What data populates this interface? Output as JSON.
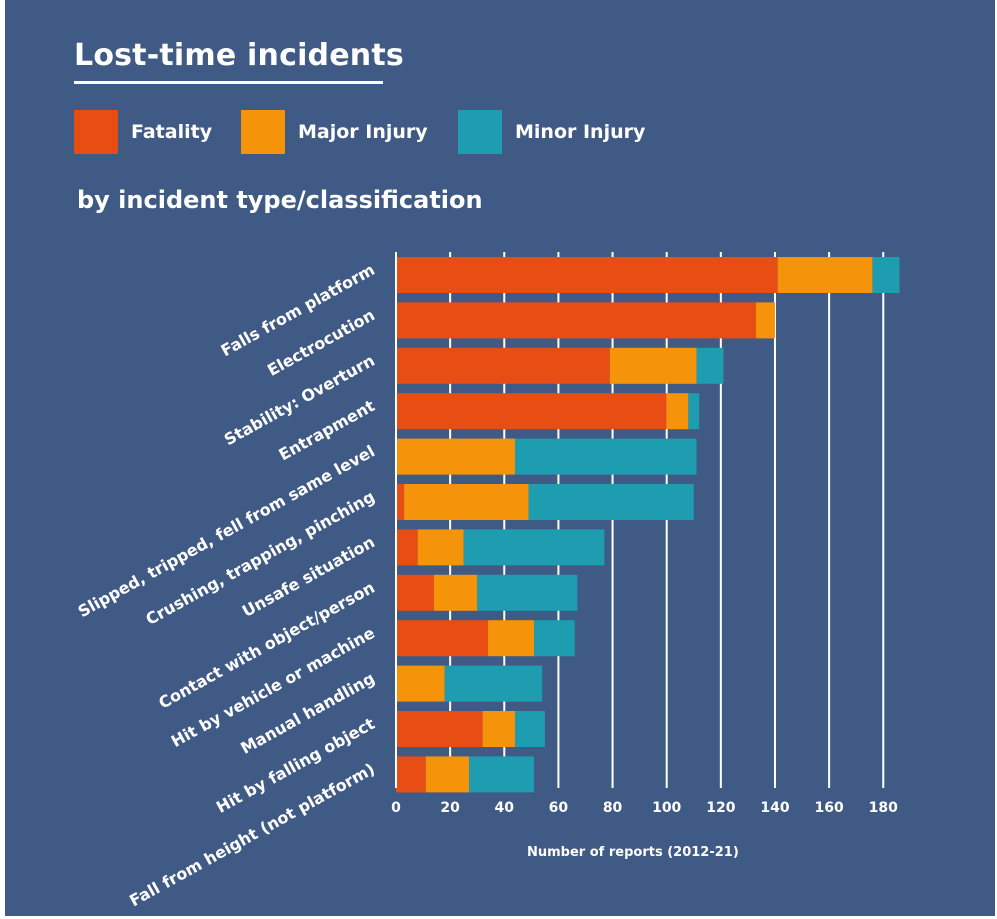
{
  "title": "Lost-time incidents",
  "subtitle": "by incident type/classification",
  "legend": [
    {
      "label": "Fatality",
      "color": "#e84d14"
    },
    {
      "label": "Major Injury",
      "color": "#f5930a"
    },
    {
      "label": "Minor Injury",
      "color": "#1e9cb0"
    }
  ],
  "colors": {
    "background": "#405a86",
    "text": "#ffffff",
    "grid": "#ffffff"
  },
  "chart_data": {
    "type": "bar",
    "orientation": "horizontal",
    "stacked": true,
    "title": "Lost-time incidents",
    "subtitle": "by incident type/classification",
    "xlabel": "Number of reports (2012-21)",
    "ylabel": "",
    "xlim": [
      0,
      180
    ],
    "xticks": [
      0,
      20,
      40,
      60,
      80,
      100,
      120,
      140,
      160,
      180
    ],
    "grid": "vertical",
    "legend_position": "top",
    "categories": [
      "Falls from platform",
      "Electrocution",
      "Stability: Overturn",
      "Entrapment",
      "Slipped, tripped, fell from same level",
      "Crushing, trapping, pinching",
      "Unsafe situation",
      "Contact with object/person",
      "Hit by vehicle or machine",
      "Manual handling",
      "Hit by falling object",
      "Fall from height (not platform)"
    ],
    "series": [
      {
        "name": "Fatality",
        "color": "#e84d14",
        "values": [
          141,
          133,
          79,
          100,
          0,
          3,
          8,
          14,
          34,
          0,
          32,
          11
        ]
      },
      {
        "name": "Major Injury",
        "color": "#f5930a",
        "values": [
          35,
          7,
          32,
          8,
          44,
          46,
          17,
          16,
          17,
          18,
          12,
          16
        ]
      },
      {
        "name": "Minor Injury",
        "color": "#1e9cb0",
        "values": [
          10,
          0,
          10,
          4,
          67,
          61,
          52,
          37,
          15,
          36,
          11,
          24
        ]
      }
    ]
  }
}
